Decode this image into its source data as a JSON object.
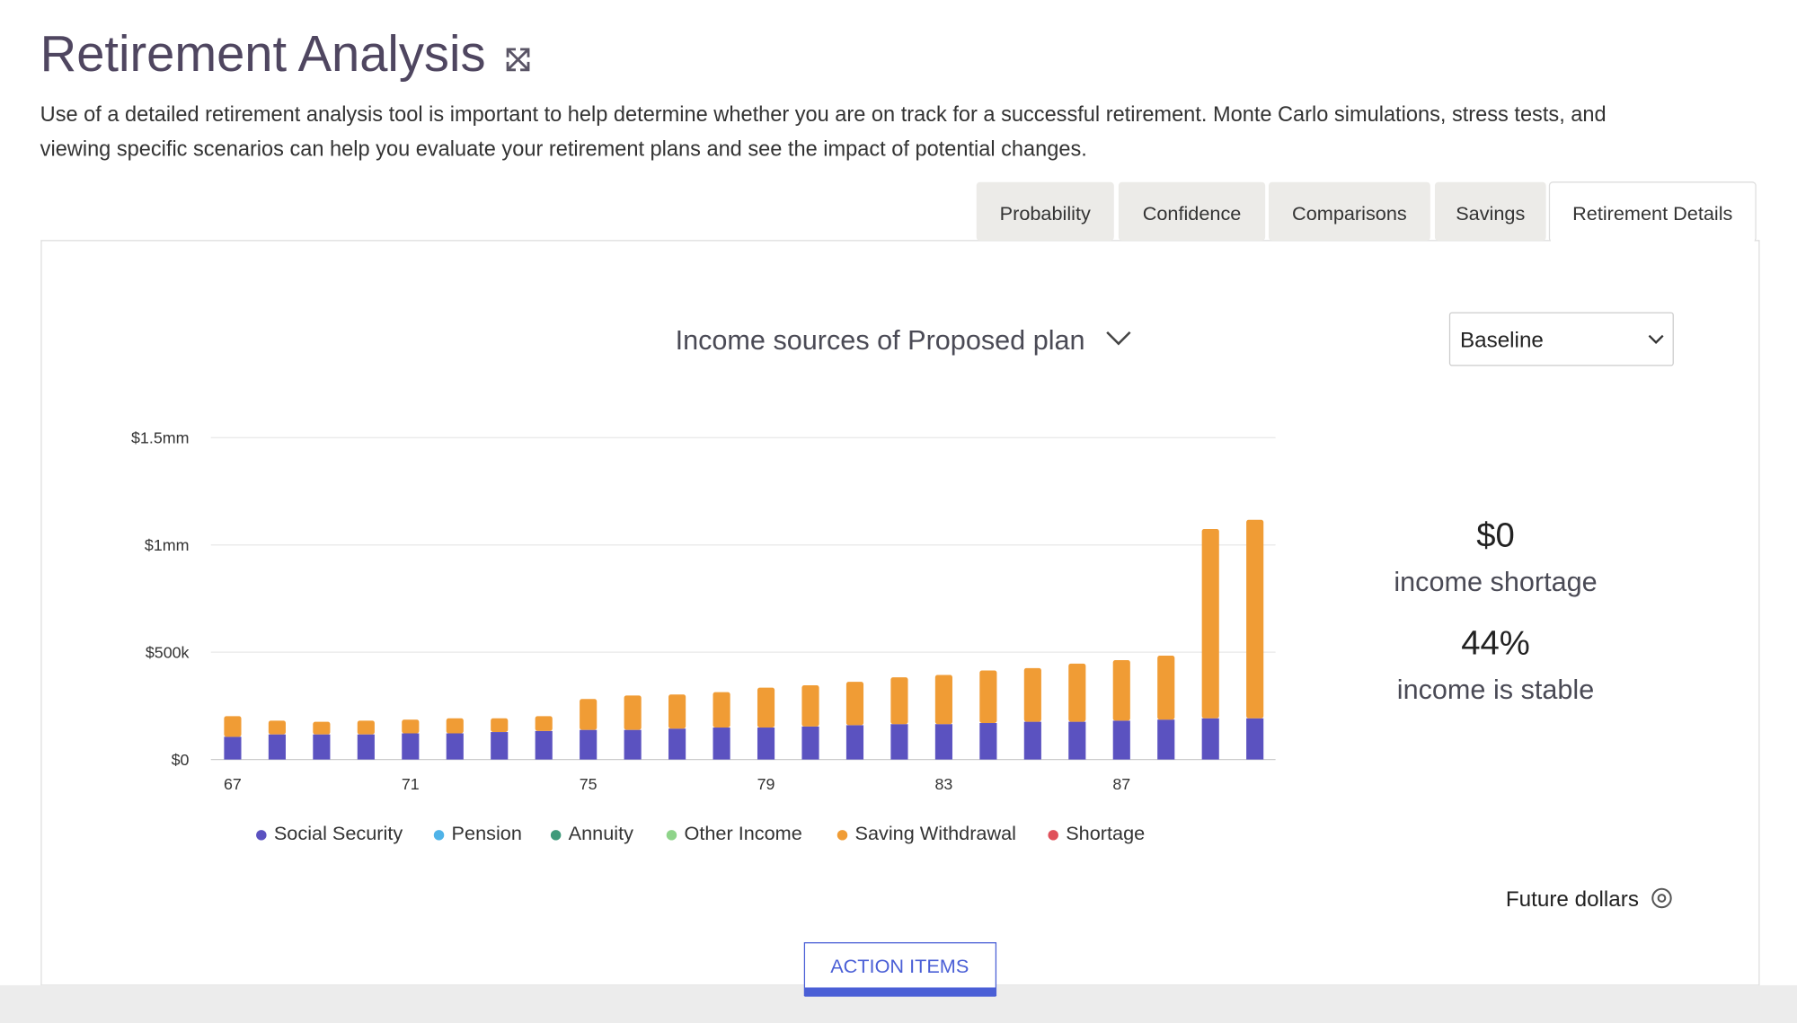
{
  "header": {
    "title": "Retirement Analysis",
    "description": [
      "Use of a detailed retirement analysis tool is important to help determine whether you are on track for a successful retirement. Monte Carlo simulations, stress tests, and",
      "viewing specific scenarios can help you evaluate your retirement plans and see the impact of potential changes."
    ]
  },
  "tabs": [
    "Probability",
    "Confidence",
    "Comparisons",
    "Savings",
    "Retirement Details"
  ],
  "scenario": "Baseline",
  "stats": [
    {
      "value": "$0",
      "label": "income shortage"
    },
    {
      "value": "44%",
      "label": "income is stable"
    }
  ],
  "dollars_setting": "Future dollars",
  "action_button": "ACTION ITEMS",
  "chart_data": {
    "type": "bar",
    "stacked": true,
    "title": "Income sources of Proposed plan",
    "categories": [
      "67",
      null,
      null,
      null,
      "71",
      null,
      null,
      null,
      "75",
      null,
      null,
      null,
      "79",
      null,
      null,
      null,
      "83",
      null,
      null,
      null,
      "87",
      null,
      null,
      null
    ],
    "series": [
      {
        "name": "Social Security",
        "color": "#5b52c0",
        "values": [
          106000,
          117000,
          117000,
          117000,
          122000,
          122000,
          128000,
          133000,
          138000,
          138000,
          144000,
          149000,
          149000,
          154000,
          160000,
          165000,
          165000,
          170000,
          176000,
          176000,
          181000,
          186000,
          192000,
          192000
        ]
      },
      {
        "name": "Pension",
        "color": "#4fb3e8",
        "values": [
          0,
          0,
          0,
          0,
          0,
          0,
          0,
          0,
          0,
          0,
          0,
          0,
          0,
          0,
          0,
          0,
          0,
          0,
          0,
          0,
          0,
          0,
          0,
          0
        ]
      },
      {
        "name": "Annuity",
        "color": "#3f9a7a",
        "values": [
          0,
          0,
          0,
          0,
          0,
          0,
          0,
          0,
          0,
          0,
          0,
          0,
          0,
          0,
          0,
          0,
          0,
          0,
          0,
          0,
          0,
          0,
          0,
          0
        ]
      },
      {
        "name": "Other Income",
        "color": "#8fd48a",
        "values": [
          0,
          0,
          0,
          0,
          0,
          0,
          0,
          0,
          0,
          0,
          0,
          0,
          0,
          0,
          0,
          0,
          0,
          0,
          0,
          0,
          0,
          0,
          0,
          0
        ]
      },
      {
        "name": "Saving Withdrawal",
        "color": "#f09c35",
        "values": [
          96000,
          64000,
          59000,
          64000,
          64000,
          70000,
          64000,
          69000,
          144000,
          160000,
          159000,
          165000,
          186000,
          192000,
          202000,
          218000,
          229000,
          245000,
          250000,
          271000,
          282000,
          298000,
          882000,
          925000
        ]
      },
      {
        "name": "Shortage",
        "color": "#e0505a",
        "values": [
          0,
          0,
          0,
          0,
          0,
          0,
          0,
          0,
          0,
          0,
          0,
          0,
          0,
          0,
          0,
          0,
          0,
          0,
          0,
          0,
          0,
          0,
          0,
          0
        ]
      }
    ],
    "ylim": [
      0,
      1500000
    ],
    "yticks": [
      {
        "value": 0,
        "label": "$0"
      },
      {
        "value": 500000,
        "label": "$500k"
      },
      {
        "value": 1000000,
        "label": "$1mm"
      },
      {
        "value": 1500000,
        "label": "$1.5mm"
      }
    ],
    "grid": true
  }
}
